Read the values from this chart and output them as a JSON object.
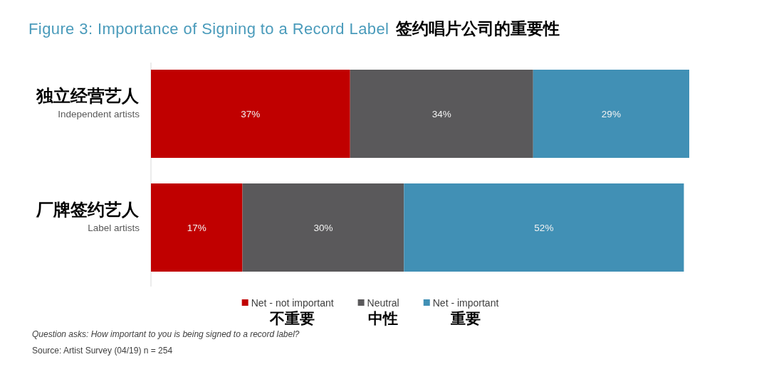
{
  "chart_data": {
    "type": "bar",
    "orientation": "horizontal",
    "stacked": true,
    "title": "Figure 3: Importance of Signing to a Record Label",
    "subtitle": "签约唱片公司的重要性",
    "categories": [
      "独立经营艺人\nIndependent artists",
      "厂牌签约艺人\nLabel artists"
    ],
    "series": [
      {
        "name": "Net - not important\n不重要",
        "color": "#c00000",
        "values": [
          37,
          17
        ],
        "value_labels": [
          "37%",
          "17%"
        ]
      },
      {
        "name": "Neutral\n中性",
        "color": "#5a595b",
        "values": [
          34,
          30
        ],
        "value_labels": [
          "34%",
          "30%"
        ]
      },
      {
        "name": "Net - important\n重要",
        "color": "#4190b5",
        "values": [
          29,
          52
        ],
        "value_labels": [
          "29%",
          "52%"
        ]
      }
    ],
    "xlim": [
      0,
      100
    ],
    "legend": "bottom",
    "tick_labels": "y",
    "annotations": [
      "Question asks: How important to you is being signed to a record label?",
      "Source: Artist Survey (04/19) n = 254"
    ]
  }
}
